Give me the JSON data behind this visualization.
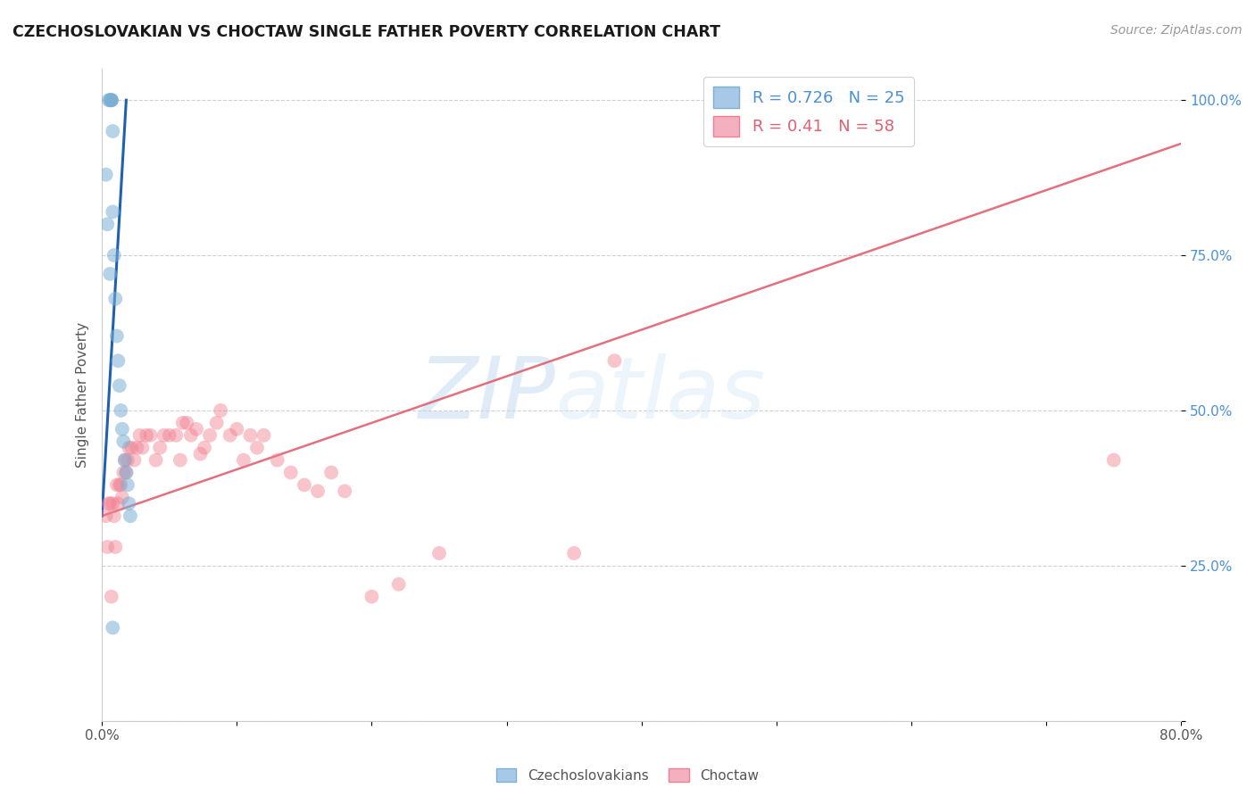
{
  "title": "CZECHOSLOVAKIAN VS CHOCTAW SINGLE FATHER POVERTY CORRELATION CHART",
  "source": "Source: ZipAtlas.com",
  "ylabel": "Single Father Poverty",
  "watermark": "ZIPatlas",
  "background_color": "#ffffff",
  "legend_czech_R": 0.726,
  "legend_czech_N": 25,
  "legend_choctaw_R": 0.41,
  "legend_choctaw_N": 58,
  "czech_color": "#7bafd4",
  "czech_alpha": 0.55,
  "choctaw_color": "#f08090",
  "choctaw_alpha": 0.45,
  "czech_line_color": "#2060b0",
  "choctaw_line_color": "#e06070",
  "xlim": [
    0.0,
    0.8
  ],
  "ylim": [
    0.0,
    1.05
  ],
  "yticks": [
    0.0,
    0.25,
    0.5,
    0.75,
    1.0
  ],
  "ytick_labels": [
    "",
    "25.0%",
    "50.0%",
    "75.0%",
    "100.0%"
  ],
  "scatter_size": 130,
  "czech_x": [
    0.005,
    0.006,
    0.007,
    0.007,
    0.007,
    0.007,
    0.008,
    0.008,
    0.009,
    0.01,
    0.011,
    0.012,
    0.013,
    0.014,
    0.015,
    0.016,
    0.017,
    0.018,
    0.019,
    0.02,
    0.021,
    0.003,
    0.004,
    0.006,
    0.008
  ],
  "czech_y": [
    1.0,
    1.0,
    1.0,
    1.0,
    1.0,
    1.0,
    0.95,
    0.82,
    0.75,
    0.68,
    0.62,
    0.58,
    0.54,
    0.5,
    0.47,
    0.45,
    0.42,
    0.4,
    0.38,
    0.35,
    0.33,
    0.88,
    0.8,
    0.72,
    0.15
  ],
  "choctaw_x": [
    0.003,
    0.004,
    0.005,
    0.006,
    0.007,
    0.008,
    0.009,
    0.01,
    0.011,
    0.012,
    0.013,
    0.014,
    0.015,
    0.016,
    0.017,
    0.018,
    0.019,
    0.02,
    0.022,
    0.024,
    0.026,
    0.028,
    0.03,
    0.033,
    0.036,
    0.04,
    0.043,
    0.046,
    0.05,
    0.055,
    0.058,
    0.06,
    0.063,
    0.066,
    0.07,
    0.073,
    0.076,
    0.08,
    0.085,
    0.088,
    0.095,
    0.1,
    0.105,
    0.11,
    0.115,
    0.12,
    0.13,
    0.14,
    0.15,
    0.16,
    0.17,
    0.18,
    0.2,
    0.22,
    0.25,
    0.35,
    0.38,
    0.75
  ],
  "choctaw_y": [
    0.33,
    0.28,
    0.35,
    0.35,
    0.2,
    0.35,
    0.33,
    0.28,
    0.38,
    0.35,
    0.38,
    0.38,
    0.36,
    0.4,
    0.42,
    0.4,
    0.42,
    0.44,
    0.44,
    0.42,
    0.44,
    0.46,
    0.44,
    0.46,
    0.46,
    0.42,
    0.44,
    0.46,
    0.46,
    0.46,
    0.42,
    0.48,
    0.48,
    0.46,
    0.47,
    0.43,
    0.44,
    0.46,
    0.48,
    0.5,
    0.46,
    0.47,
    0.42,
    0.46,
    0.44,
    0.46,
    0.42,
    0.4,
    0.38,
    0.37,
    0.4,
    0.37,
    0.2,
    0.22,
    0.27,
    0.27,
    0.58,
    0.42
  ],
  "czech_line_x": [
    0.0,
    0.018
  ],
  "czech_line_y": [
    0.33,
    1.0
  ],
  "choctaw_line_x": [
    0.0,
    0.8
  ],
  "choctaw_line_y": [
    0.33,
    0.93
  ]
}
